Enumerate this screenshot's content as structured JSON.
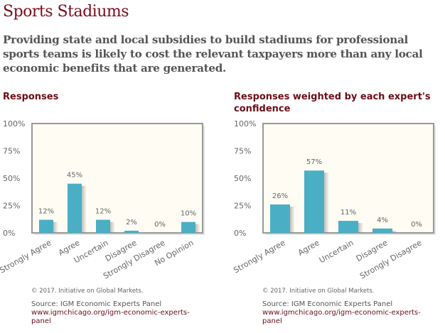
{
  "page": {
    "title": "Sports Stadiums",
    "question": "Providing state and local subsidies to build stadiums for professional sports teams is likely to cost the relevant taxpayers more than any local economic benefits that are generated."
  },
  "colors": {
    "bar": "#4aafc4",
    "plot_background": "#fffcf4",
    "frame": "#999999",
    "title": "#7a0c1a",
    "axis_text": "#666666"
  },
  "footer": {
    "copyright": "© 2017. Initiative on Global Markets.",
    "source_label": "Source: IGM Economic Experts Panel",
    "source_url_line1": "www.igmchicago.org/igm-economic-experts-",
    "source_url_line2": "panel"
  },
  "chart_data": [
    {
      "type": "bar",
      "title": "Responses",
      "categories": [
        "Strongly Agree",
        "Agree",
        "Uncertain",
        "Disagree",
        "Strongly Disagree",
        "No Opinion"
      ],
      "values": [
        12,
        45,
        12,
        2,
        0,
        10
      ],
      "data_labels": [
        "12%",
        "45%",
        "12%",
        "2%",
        "0%",
        "10%"
      ],
      "ylim": [
        0,
        100
      ],
      "yticks": [
        "0%",
        "25%",
        "50%",
        "75%",
        "100%"
      ],
      "ytick_values": [
        0,
        25,
        50,
        75,
        100
      ],
      "xlabel": "",
      "ylabel": "",
      "grid": false,
      "legend": "none"
    },
    {
      "type": "bar",
      "title": "Responses weighted by each expert's confidence",
      "categories": [
        "Strongly Agree",
        "Agree",
        "Uncertain",
        "Disagree",
        "Strongly Disagree"
      ],
      "values": [
        26,
        57,
        11,
        4,
        0
      ],
      "data_labels": [
        "26%",
        "57%",
        "11%",
        "4%",
        "0%"
      ],
      "ylim": [
        0,
        100
      ],
      "yticks": [
        "0%",
        "25%",
        "50%",
        "75%",
        "100%"
      ],
      "ytick_values": [
        0,
        25,
        50,
        75,
        100
      ],
      "xlabel": "",
      "ylabel": "",
      "grid": false,
      "legend": "none"
    }
  ]
}
